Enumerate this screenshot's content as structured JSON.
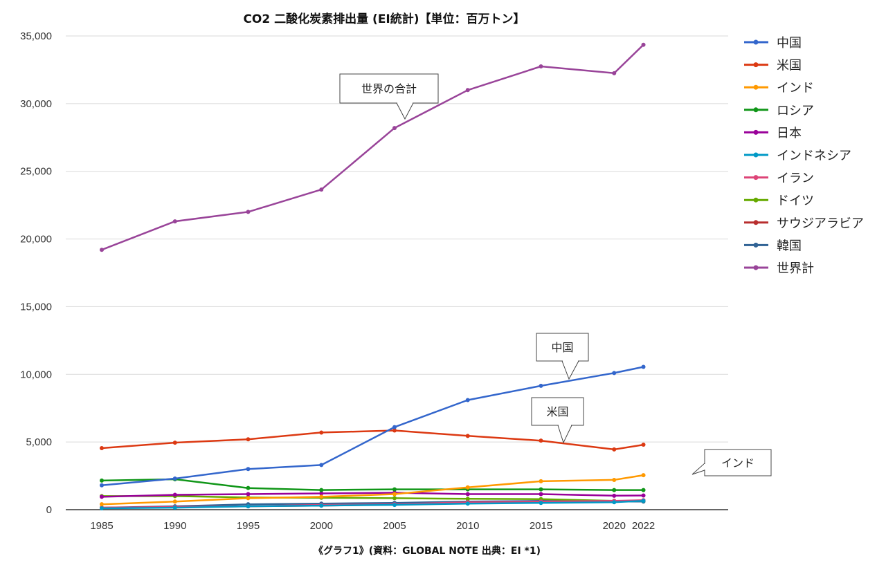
{
  "chart_data": {
    "type": "line",
    "title": "CO2 二酸化炭素排出量 (EI統計)【単位：百万トン】",
    "footer": "《グラフ1》(資料：GLOBAL NOTE 出典：EI *1)",
    "x": [
      "1985",
      "1990",
      "1995",
      "2000",
      "2005",
      "2010",
      "2015",
      "2020",
      "2022"
    ],
    "ylim": [
      0,
      35000
    ],
    "yticks": [
      0,
      5000,
      10000,
      15000,
      20000,
      25000,
      30000,
      35000
    ],
    "ytick_labels": [
      "0",
      "5,000",
      "10,000",
      "15,000",
      "20,000",
      "25,000",
      "30,000",
      "35,000"
    ],
    "grid": true,
    "legend_position": "right",
    "series": [
      {
        "name": "中国",
        "color": "#3366cc",
        "values": [
          1800,
          2300,
          3000,
          3300,
          6100,
          8100,
          9150,
          10100,
          10550
        ]
      },
      {
        "name": "米国",
        "color": "#dc3912",
        "values": [
          4550,
          4950,
          5200,
          5700,
          5850,
          5450,
          5100,
          4450,
          4800
        ]
      },
      {
        "name": "インド",
        "color": "#ff9900",
        "values": [
          400,
          600,
          850,
          950,
          1150,
          1650,
          2100,
          2200,
          2550
        ]
      },
      {
        "name": "ロシア",
        "color": "#109618",
        "values": [
          2150,
          2250,
          1600,
          1450,
          1500,
          1500,
          1500,
          1450,
          1450
        ]
      },
      {
        "name": "日本",
        "color": "#990099",
        "values": [
          950,
          1100,
          1150,
          1200,
          1250,
          1150,
          1150,
          1030,
          1050
        ]
      },
      {
        "name": "インドネシア",
        "color": "#0099c6",
        "values": [
          100,
          150,
          250,
          300,
          350,
          450,
          500,
          550,
          650
        ]
      },
      {
        "name": "イラン",
        "color": "#dd4477",
        "values": [
          150,
          200,
          250,
          350,
          400,
          550,
          600,
          650,
          700
        ]
      },
      {
        "name": "ドイツ",
        "color": "#66aa00",
        "values": [
          1000,
          1000,
          900,
          880,
          850,
          800,
          780,
          650,
          650
        ]
      },
      {
        "name": "サウジアラビア",
        "color": "#b82e2e",
        "values": [
          150,
          200,
          250,
          300,
          380,
          500,
          600,
          600,
          650
        ]
      },
      {
        "name": "韓国",
        "color": "#316395",
        "values": [
          150,
          250,
          400,
          450,
          500,
          600,
          650,
          600,
          600
        ]
      },
      {
        "name": "世界計",
        "color": "#994499",
        "values": [
          19200,
          21300,
          22000,
          23650,
          28200,
          31000,
          32750,
          32250,
          34350
        ]
      }
    ],
    "annotations": [
      {
        "text": "世界の合計"
      },
      {
        "text": "中国"
      },
      {
        "text": "米国"
      },
      {
        "text": "インド"
      }
    ]
  }
}
